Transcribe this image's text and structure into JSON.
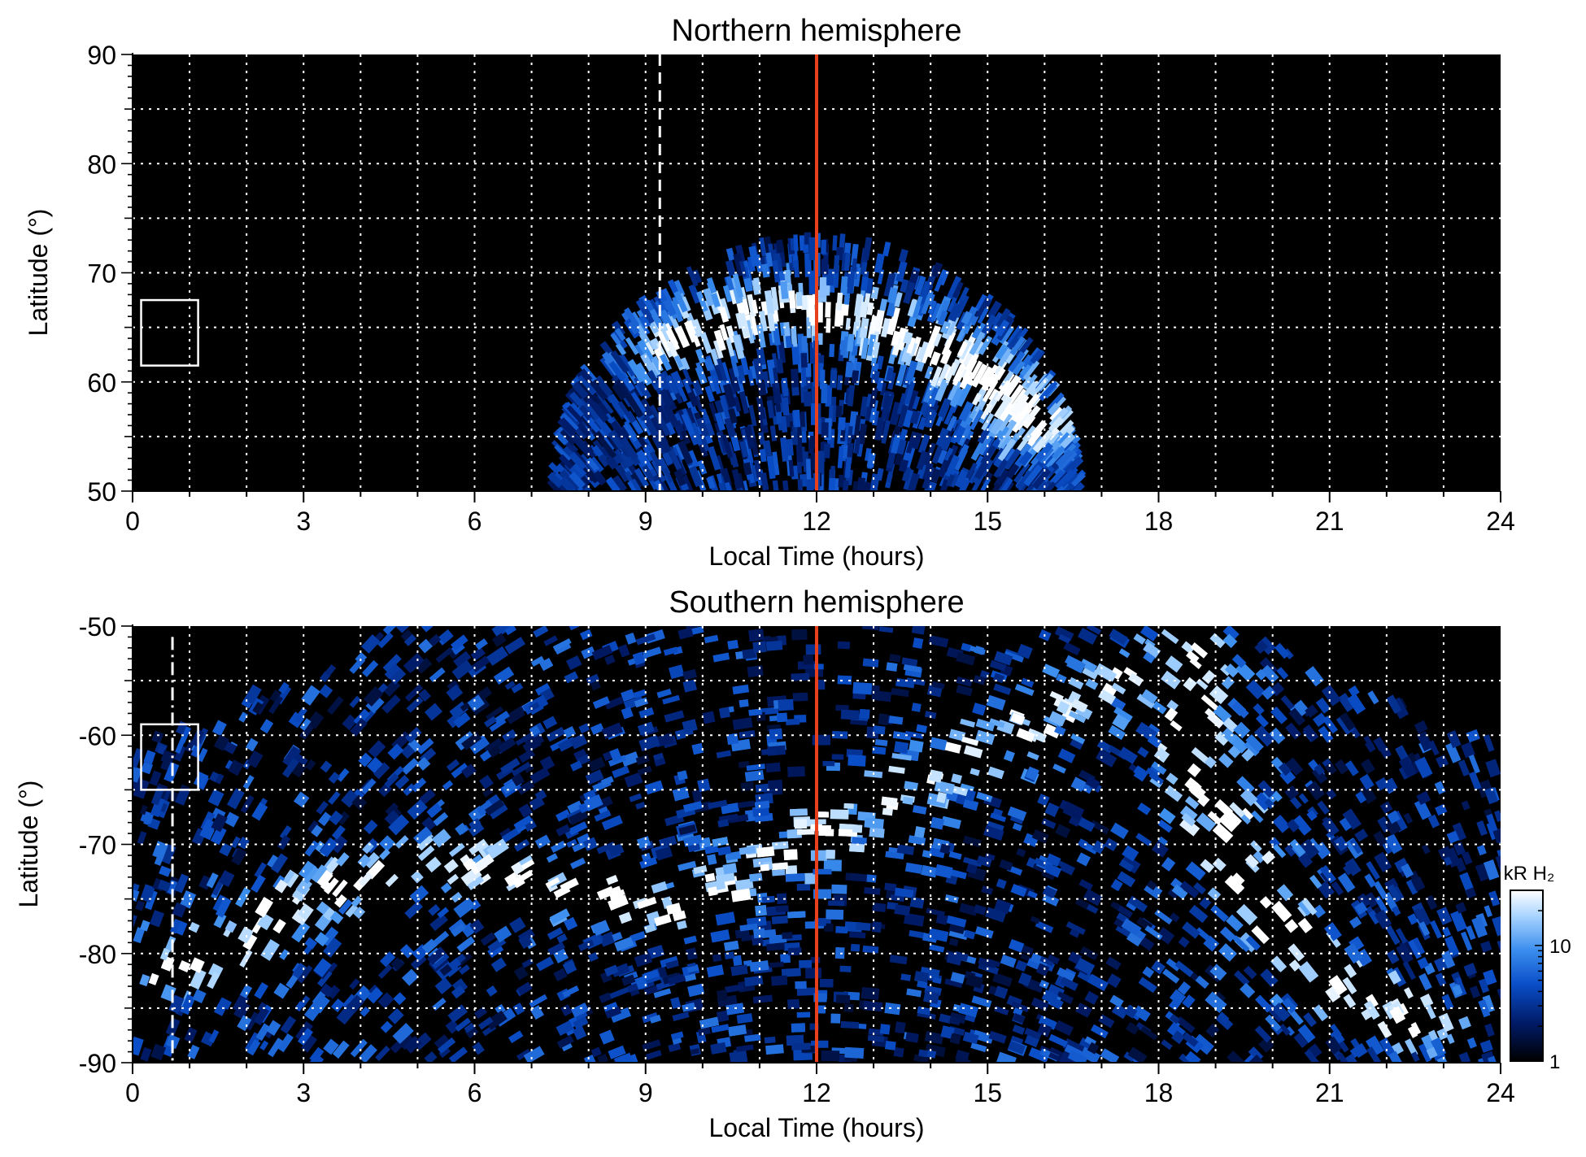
{
  "chart_data": [
    {
      "type": "heatmap",
      "title": "Northern hemisphere",
      "xlabel": "Local Time (hours)",
      "ylabel": "Latitude (°)",
      "xlim": [
        0,
        24
      ],
      "ylim": [
        50,
        90
      ],
      "xticks": [
        "0",
        "3",
        "6",
        "9",
        "12",
        "15",
        "18",
        "21",
        "24"
      ],
      "yticks": [
        "50",
        "60",
        "70",
        "80",
        "90"
      ],
      "grid": true,
      "noon_line_x": 12,
      "dashed_line_x": 9.25,
      "dashed_line_y_range": [
        50,
        90
      ],
      "box": {
        "x": [
          0.15,
          1.15
        ],
        "y": [
          61.5,
          67.5
        ]
      },
      "emission": {
        "center_lt": 12,
        "edge_lat": 50,
        "top_lat": 73,
        "halfwidth_lt_at_edge": 4.6,
        "oval": [
          {
            "lt": 9.5,
            "lat": 63.5
          },
          {
            "lt": 10.5,
            "lat": 66
          },
          {
            "lt": 11.3,
            "lat": 67
          },
          {
            "lt": 12,
            "lat": 66.5
          },
          {
            "lt": 13,
            "lat": 65.5
          },
          {
            "lt": 14,
            "lat": 63.5
          },
          {
            "lt": 15,
            "lat": 60.5
          },
          {
            "lt": 15.8,
            "lat": 56
          }
        ]
      }
    },
    {
      "type": "heatmap",
      "title": "Southern hemisphere",
      "xlabel": "Local Time (hours)",
      "ylabel": "Latitude (°)",
      "xlim": [
        0,
        24
      ],
      "ylim": [
        -90,
        -50
      ],
      "xticks": [
        "0",
        "3",
        "6",
        "9",
        "12",
        "15",
        "18",
        "21",
        "24"
      ],
      "yticks": [
        "-90",
        "-80",
        "-70",
        "-60",
        "-50"
      ],
      "grid": true,
      "noon_line_x": 12,
      "dashed_line_x": 0.7,
      "dashed_line_y_range": [
        -90,
        -51
      ],
      "box": {
        "x": [
          0.15,
          1.15
        ],
        "y": [
          -65,
          -59
        ]
      },
      "emission": {
        "center_lt": 12,
        "halfwidth_lt_at_edge": 7.4,
        "oval": [
          {
            "lt": 0.6,
            "lat": -82
          },
          {
            "lt": 2,
            "lat": -78
          },
          {
            "lt": 3.5,
            "lat": -74
          },
          {
            "lt": 5,
            "lat": -72
          },
          {
            "lt": 6.5,
            "lat": -73.5
          },
          {
            "lt": 8,
            "lat": -75
          },
          {
            "lt": 9.5,
            "lat": -76
          },
          {
            "lt": 18.3,
            "lat": -52
          },
          {
            "lt": 18.6,
            "lat": -60
          },
          {
            "lt": 19.2,
            "lat": -70
          },
          {
            "lt": 20,
            "lat": -77
          },
          {
            "lt": 21,
            "lat": -82
          },
          {
            "lt": 22.5,
            "lat": -86
          }
        ]
      },
      "colorbar": {
        "label": "kR H₂",
        "ticks": [
          "1",
          "10"
        ],
        "range": [
          1,
          30
        ],
        "scale": "log",
        "colors": [
          "#000000",
          "#001a66",
          "#0a4ec8",
          "#3b8eee",
          "#a9d4ff",
          "#ffffff"
        ]
      }
    }
  ]
}
